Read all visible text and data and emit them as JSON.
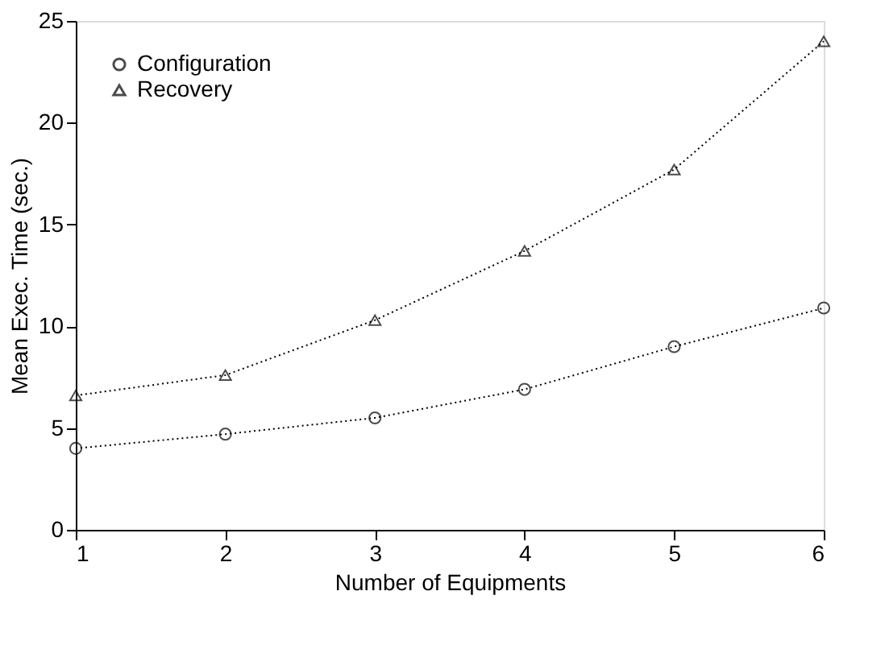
{
  "chart_data": {
    "type": "line",
    "xlabel": "Number of Equipments",
    "ylabel": "Mean Exec. Time (sec.)",
    "x": [
      1,
      2,
      3,
      4,
      5,
      6
    ],
    "series": [
      {
        "name": "Configuration",
        "color": "#000000",
        "marker": "circle",
        "values": [
          4.0,
          4.7,
          5.5,
          6.9,
          9.0,
          10.9
        ]
      },
      {
        "name": "Recovery",
        "color": "#000000",
        "marker": "triangle",
        "values": [
          6.6,
          7.6,
          10.3,
          13.7,
          17.7,
          24.0
        ]
      }
    ],
    "xlim": [
      1,
      6
    ],
    "xticks": [
      1,
      2,
      3,
      4,
      5,
      6
    ],
    "ylim": [
      0,
      25
    ],
    "yticks": [
      0,
      5,
      10,
      15,
      20,
      25
    ],
    "grid": false,
    "legend": "top left",
    "line_style": "dotted"
  }
}
